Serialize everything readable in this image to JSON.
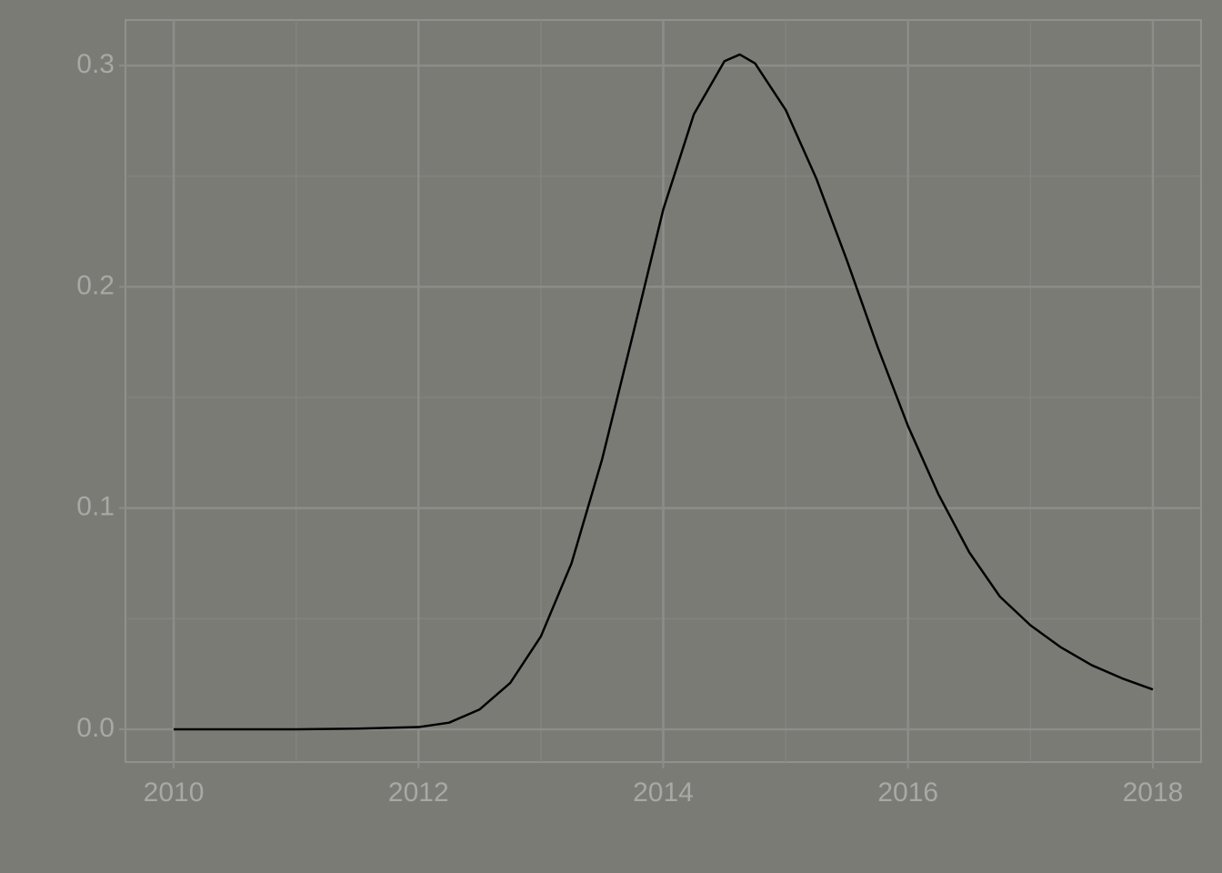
{
  "chart_data": {
    "type": "line",
    "x": [
      2010,
      2011,
      2011.5,
      2012,
      2012.25,
      2012.5,
      2012.75,
      2013,
      2013.25,
      2013.5,
      2013.75,
      2014,
      2014.25,
      2014.5,
      2014.625,
      2014.75,
      2015,
      2015.25,
      2015.5,
      2015.75,
      2016,
      2016.25,
      2016.5,
      2016.75,
      2017,
      2017.25,
      2017.5,
      2017.75,
      2018
    ],
    "values": [
      0,
      0,
      0.0003,
      0.001,
      0.003,
      0.009,
      0.021,
      0.042,
      0.075,
      0.122,
      0.178,
      0.235,
      0.278,
      0.302,
      0.305,
      0.301,
      0.28,
      0.249,
      0.212,
      0.173,
      0.137,
      0.106,
      0.08,
      0.06,
      0.047,
      0.037,
      0.029,
      0.023,
      0.018
    ],
    "color": "#000000",
    "xlim": [
      2009.606,
      2018.394
    ],
    "ylim": [
      -0.0148,
      0.3206
    ],
    "xticks": [
      2010,
      2012,
      2014,
      2016,
      2018
    ],
    "yticks": [
      {
        "value": 0,
        "label": "0.0"
      },
      0.1,
      0.2,
      0.3
    ],
    "xminor": [
      2011,
      2013,
      2015,
      2017
    ],
    "yminor": [
      0.05,
      0.15,
      0.25
    ],
    "grid": true
  }
}
